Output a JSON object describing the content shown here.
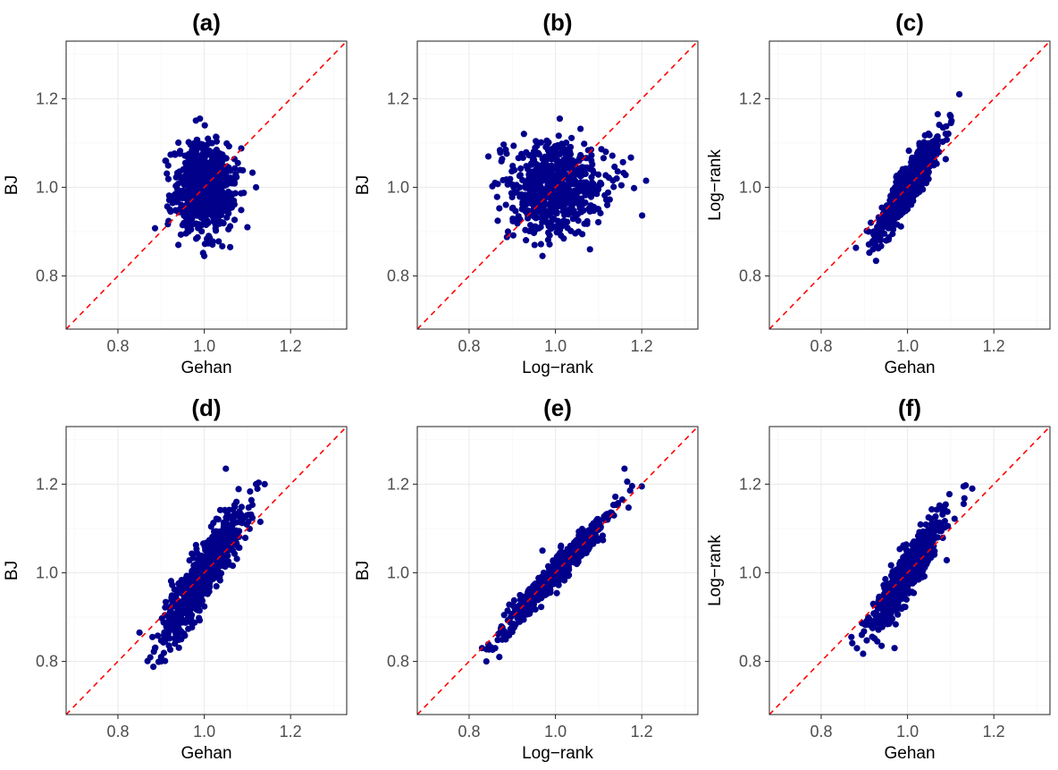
{
  "chart_data": [
    {
      "id": "a",
      "title": "(a)",
      "type": "scatter",
      "xlabel": "Gehan",
      "ylabel": "BJ",
      "xlim": [
        0.68,
        1.33
      ],
      "ylim": [
        0.68,
        1.33
      ],
      "ticks": [
        0.8,
        1.0,
        1.2
      ],
      "tick_labels": [
        "0.8",
        "1.0",
        "1.2"
      ],
      "reference_line": "y = x (red dashed)",
      "cloud": {
        "n": 700,
        "mean_x": 1.0,
        "mean_y": 1.0,
        "sd_x": 0.035,
        "sd_y": 0.05,
        "corr": 0.0
      },
      "points": [
        [
          1.12,
          1.0
        ],
        [
          0.91,
          1.06
        ],
        [
          1.0,
          0.845
        ],
        [
          0.99,
          1.155
        ],
        [
          0.94,
          0.87
        ],
        [
          1.06,
          0.865
        ],
        [
          1.1,
          0.91
        ]
      ]
    },
    {
      "id": "b",
      "title": "(b)",
      "type": "scatter",
      "xlabel": "Log−rank",
      "ylabel": "BJ",
      "xlim": [
        0.68,
        1.33
      ],
      "ylim": [
        0.68,
        1.33
      ],
      "ticks": [
        0.8,
        1.0,
        1.2
      ],
      "tick_labels": [
        "0.8",
        "1.0",
        "1.2"
      ],
      "reference_line": "y = x (red dashed)",
      "cloud": {
        "n": 700,
        "mean_x": 1.0,
        "mean_y": 1.0,
        "sd_x": 0.055,
        "sd_y": 0.05,
        "corr": 0.0
      },
      "points": [
        [
          1.21,
          1.015
        ],
        [
          0.86,
          1.01
        ],
        [
          0.97,
          0.845
        ],
        [
          1.01,
          1.155
        ],
        [
          0.89,
          0.9
        ],
        [
          1.12,
          0.96
        ],
        [
          1.08,
          0.86
        ]
      ]
    },
    {
      "id": "c",
      "title": "(c)",
      "type": "scatter",
      "xlabel": "Gehan",
      "ylabel": "Log−rank",
      "xlim": [
        0.68,
        1.33
      ],
      "ylim": [
        0.68,
        1.33
      ],
      "ticks": [
        0.8,
        1.0,
        1.2
      ],
      "tick_labels": [
        "0.8",
        "1.0",
        "1.2"
      ],
      "reference_line": "y = x (red dashed)",
      "cloud": {
        "n": 700,
        "mean_x": 1.0,
        "mean_y": 1.0,
        "sd_x": 0.035,
        "sd_y": 0.055,
        "corr": 0.9
      },
      "points": [
        [
          1.12,
          1.21
        ],
        [
          0.92,
          0.86
        ],
        [
          1.07,
          1.165
        ],
        [
          0.91,
          0.9
        ],
        [
          1.1,
          1.16
        ]
      ]
    },
    {
      "id": "d",
      "title": "(d)",
      "type": "scatter",
      "xlabel": "Gehan",
      "ylabel": "BJ",
      "xlim": [
        0.68,
        1.33
      ],
      "ylim": [
        0.68,
        1.33
      ],
      "ticks": [
        0.8,
        1.0,
        1.2
      ],
      "tick_labels": [
        "0.8",
        "1.0",
        "1.2"
      ],
      "reference_line": "y = x (red dashed)",
      "cloud": {
        "n": 700,
        "mean_x": 1.0,
        "mean_y": 1.0,
        "sd_x": 0.045,
        "sd_y": 0.07,
        "corr": 0.88
      },
      "points": [
        [
          0.9,
          0.8
        ],
        [
          0.9,
          0.81
        ],
        [
          1.05,
          1.235
        ],
        [
          1.12,
          1.2
        ],
        [
          1.14,
          1.2
        ],
        [
          0.85,
          0.865
        ],
        [
          0.88,
          0.855
        ],
        [
          1.13,
          1.115
        ]
      ]
    },
    {
      "id": "e",
      "title": "(e)",
      "type": "scatter",
      "xlabel": "Log−rank",
      "ylabel": "BJ",
      "xlim": [
        0.68,
        1.33
      ],
      "ylim": [
        0.68,
        1.33
      ],
      "ticks": [
        0.8,
        1.0,
        1.2
      ],
      "tick_labels": [
        "0.8",
        "1.0",
        "1.2"
      ],
      "reference_line": "y = x (red dashed)",
      "cloud": {
        "n": 700,
        "mean_x": 1.0,
        "mean_y": 1.0,
        "sd_x": 0.06,
        "sd_y": 0.065,
        "corr": 0.97
      },
      "points": [
        [
          0.84,
          0.8
        ],
        [
          0.83,
          0.83
        ],
        [
          1.16,
          1.235
        ],
        [
          1.2,
          1.195
        ],
        [
          0.97,
          1.05
        ],
        [
          0.87,
          0.81
        ]
      ]
    },
    {
      "id": "f",
      "title": "(f)",
      "type": "scatter",
      "xlabel": "Gehan",
      "ylabel": "Log−rank",
      "xlim": [
        0.68,
        1.33
      ],
      "ylim": [
        0.68,
        1.33
      ],
      "ticks": [
        0.8,
        1.0,
        1.2
      ],
      "tick_labels": [
        "0.8",
        "1.0",
        "1.2"
      ],
      "reference_line": "y = x (red dashed)",
      "cloud": {
        "n": 700,
        "mean_x": 1.0,
        "mean_y": 1.0,
        "sd_x": 0.04,
        "sd_y": 0.06,
        "corr": 0.9
      },
      "points": [
        [
          0.87,
          0.855
        ],
        [
          0.94,
          0.835
        ],
        [
          0.93,
          0.845
        ],
        [
          0.97,
          0.83
        ],
        [
          1.13,
          1.195
        ],
        [
          1.15,
          1.19
        ]
      ]
    }
  ],
  "colors": {
    "points": "#00008b",
    "reference_line": "#ff0000",
    "frame": "#333333",
    "tick_label": "#4d4d4d"
  }
}
